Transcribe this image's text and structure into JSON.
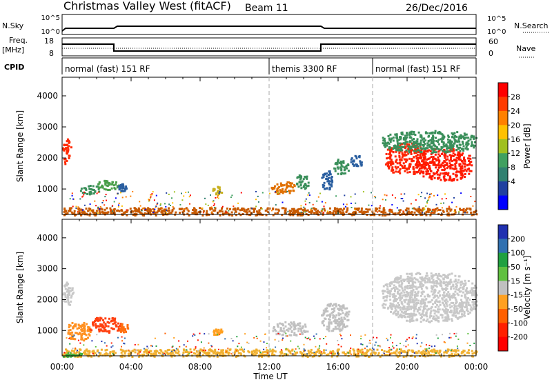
{
  "header": {
    "station": "Christmas Valley West (fitACF)",
    "beam": "Beam 11",
    "date": "26/Dec/2016"
  },
  "strip_labels": {
    "nsky": "N.Sky",
    "nsearch": "N.Search",
    "freq_line1": "Freq.",
    "freq_line2": "[MHz]",
    "nave": "Nave",
    "cpid": "CPID",
    "nsky_ticks": [
      "10^5",
      "10^0"
    ],
    "nsearch_ticks": [
      "10^5",
      "10^0"
    ],
    "freq_ticks": [
      "18",
      "8"
    ],
    "nave_ticks": [
      "60",
      "0"
    ]
  },
  "cpid_segments": [
    {
      "start_hour": 0,
      "label": "normal (fast) 151 RF"
    },
    {
      "start_hour": 12,
      "label": "themis 3300 RF"
    },
    {
      "start_hour": 18,
      "label": "normal (fast) 151 RF"
    }
  ],
  "chart_data": [
    {
      "type": "heatmap",
      "name": "power",
      "ylabel": "Slant Range [km]",
      "yticks": [
        1000,
        2000,
        3000,
        4000
      ],
      "ylim": [
        180,
        4600
      ],
      "xlim": [
        0,
        24
      ],
      "colorbar_label": "Power [dB]",
      "colorbar_ticks": [
        "28",
        "24",
        "20",
        "16",
        "12",
        "8",
        "4"
      ],
      "colorbar_colors": [
        "#ff0000",
        "#ff3b00",
        "#ff8000",
        "#ffc000",
        "#a0c020",
        "#40a060",
        "#308070",
        "#2040a0",
        "#0000ff"
      ],
      "blobs": [
        {
          "t0": 0.0,
          "t1": 0.5,
          "r0": 1800,
          "r1": 2650,
          "color": "#ff2a00"
        },
        {
          "t0": 1.0,
          "t1": 2.2,
          "r0": 850,
          "r1": 1150,
          "color": "#3a8f5a"
        },
        {
          "t0": 2.0,
          "t1": 3.3,
          "r0": 1000,
          "r1": 1300,
          "color": "#4a9f4a"
        },
        {
          "t0": 3.2,
          "t1": 3.7,
          "r0": 950,
          "r1": 1200,
          "color": "#2a5fa0"
        },
        {
          "t0": 8.7,
          "t1": 9.3,
          "r0": 850,
          "r1": 1100,
          "color": "#c8b020"
        },
        {
          "t0": 12.1,
          "t1": 13.5,
          "r0": 850,
          "r1": 1250,
          "color": "#e07000"
        },
        {
          "t0": 13.5,
          "t1": 14.3,
          "r0": 1000,
          "r1": 1500,
          "color": "#3a8f5a"
        },
        {
          "t0": 15.0,
          "t1": 15.7,
          "r0": 1000,
          "r1": 1600,
          "color": "#2a5fa0"
        },
        {
          "t0": 15.7,
          "t1": 16.6,
          "r0": 1500,
          "r1": 2000,
          "color": "#3a8f5a"
        },
        {
          "t0": 16.7,
          "t1": 17.4,
          "r0": 1750,
          "r1": 2100,
          "color": "#2a5fa0"
        },
        {
          "t0": 18.7,
          "t1": 21.0,
          "r0": 1500,
          "r1": 2500,
          "color": "#ff2200"
        },
        {
          "t0": 20.5,
          "t1": 23.7,
          "r0": 1300,
          "r1": 2350,
          "color": "#ff1a00"
        },
        {
          "t0": 18.5,
          "t1": 24.0,
          "r0": 2200,
          "r1": 2900,
          "color": "#3a8f5a"
        },
        {
          "t0": 0.0,
          "t1": 24.0,
          "r0": 180,
          "r1": 420,
          "color": "#c85a00"
        }
      ]
    },
    {
      "type": "heatmap",
      "name": "velocity",
      "ylabel": "Slant Range [km]",
      "xlabel": "Time UT",
      "yticks": [
        1000,
        2000,
        3000,
        4000
      ],
      "ylim": [
        180,
        4600
      ],
      "xlim": [
        0,
        24
      ],
      "xtick_labels": [
        "00:00",
        "04:00",
        "08:00",
        "12:00",
        "16:00",
        "20:00",
        "00:00"
      ],
      "xtick_hours": [
        0,
        4,
        8,
        12,
        16,
        20,
        24
      ],
      "colorbar_label": "Velocity [m s⁻¹]",
      "colorbar_ticks": [
        "200",
        "100",
        "50",
        "15",
        "-15",
        "-50",
        "-100",
        "-200"
      ],
      "colorbar_colors": [
        "#2030b0",
        "#3070b0",
        "#20a040",
        "#60c040",
        "#c0c0c0",
        "#ffa020",
        "#ff6000",
        "#ff2000",
        "#ff0000"
      ],
      "blobs": [
        {
          "t0": 0.0,
          "t1": 0.6,
          "r0": 1800,
          "r1": 2600,
          "color": "#c8c8c8"
        },
        {
          "t0": 0.2,
          "t1": 1.6,
          "r0": 700,
          "r1": 1300,
          "color": "#ff9020"
        },
        {
          "t0": 1.5,
          "t1": 3.4,
          "r0": 950,
          "r1": 1450,
          "color": "#ff4010"
        },
        {
          "t0": 3.3,
          "t1": 3.8,
          "r0": 950,
          "r1": 1250,
          "color": "#ff7010"
        },
        {
          "t0": 8.7,
          "t1": 9.3,
          "r0": 850,
          "r1": 1100,
          "color": "#ffa020"
        },
        {
          "t0": 12.1,
          "t1": 14.2,
          "r0": 850,
          "r1": 1300,
          "color": "#c0c0c0"
        },
        {
          "t0": 15.0,
          "t1": 16.6,
          "r0": 1000,
          "r1": 1900,
          "color": "#c0c0c0"
        },
        {
          "t0": 18.5,
          "t1": 24.0,
          "r0": 1300,
          "r1": 2900,
          "color": "#c8c8c8"
        },
        {
          "t0": 0.0,
          "t1": 24.0,
          "r0": 180,
          "r1": 420,
          "color": "#f0b030"
        },
        {
          "t0": 0.0,
          "t1": 1.1,
          "r0": 180,
          "r1": 320,
          "color": "#40b040"
        }
      ]
    }
  ]
}
